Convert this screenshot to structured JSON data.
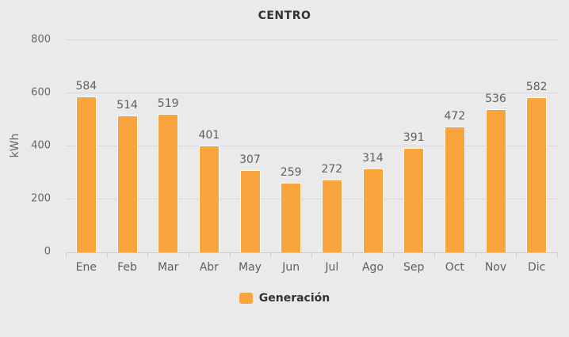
{
  "title": "CENTRO",
  "colors": {
    "background": "#EAEAEA",
    "bar": "#F9A43C",
    "bar_border": "#FFFFFF",
    "axis_line": "#C0D0E0",
    "gridline": "#D8D8D8",
    "title_text": "#333333",
    "value_label_text": "#5F5F5F",
    "tick_label_text": "#666666"
  },
  "legend": {
    "items": [
      {
        "label": "Generación",
        "color": "#F9A43C"
      }
    ]
  },
  "chart_data": {
    "type": "bar",
    "title": "CENTRO",
    "categories": [
      "Ene",
      "Feb",
      "Mar",
      "Abr",
      "May",
      "Jun",
      "Jul",
      "Ago",
      "Sep",
      "Oct",
      "Nov",
      "Dic"
    ],
    "series": [
      {
        "name": "Generación",
        "values": [
          584,
          514,
          519,
          401,
          307,
          259,
          272,
          314,
          391,
          472,
          536,
          582
        ]
      }
    ],
    "xlabel": "",
    "ylabel": "kWh",
    "y_ticks": [
      0,
      200,
      400,
      600,
      800
    ],
    "ylim": [
      0,
      800
    ],
    "grid": true,
    "data_labels": true,
    "legend_position": "bottom"
  }
}
